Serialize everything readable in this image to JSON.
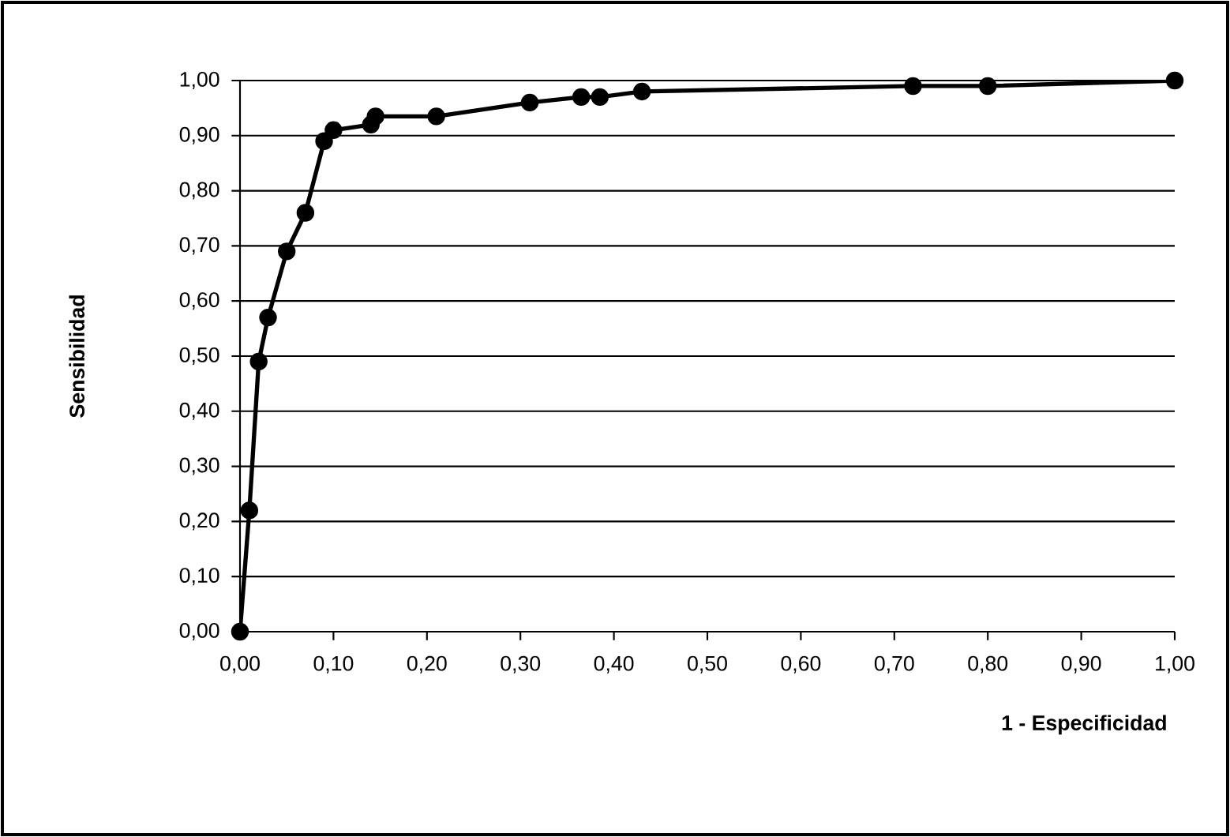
{
  "chart_data": {
    "type": "line",
    "xlabel": "**1 - Especificidad**",
    "ylabel": "**Sensibilidad**",
    "x": [
      0,
      0.01,
      0.02,
      0.03,
      0.05,
      0.07,
      0.09,
      0.1,
      0.14,
      0.145,
      0.21,
      0.31,
      0.365,
      0.385,
      0.43,
      0.72,
      0.8,
      1.0
    ],
    "series": [
      {
        "color": "#000000",
        "values": [
          0,
          0.22,
          0.49,
          0.57,
          0.69,
          0.76,
          0.89,
          0.91,
          0.92,
          0.935,
          0.935,
          0.96,
          0.97,
          0.97,
          0.98,
          0.99,
          0.99,
          1.0
        ]
      }
    ],
    "xlim": [
      0,
      1
    ],
    "ylim": [
      0,
      1
    ],
    "xticks": [
      {
        "value": 0,
        "label": "0,00"
      },
      {
        "value": 0.1,
        "label": "0,10"
      },
      {
        "value": 0.2,
        "label": "0,20"
      },
      {
        "value": 0.3,
        "label": "0,30"
      },
      {
        "value": 0.4,
        "label": "0,40"
      },
      {
        "value": 0.5,
        "label": "0,50"
      },
      {
        "value": 0.6,
        "label": "0,60"
      },
      {
        "value": 0.7,
        "label": "0,70"
      },
      {
        "value": 0.8,
        "label": "0,80"
      },
      {
        "value": 0.9,
        "label": "0,90"
      },
      {
        "value": 1,
        "label": "1,00"
      }
    ],
    "yticks": [
      {
        "value": 0,
        "label": "0,00"
      },
      {
        "value": 0.1,
        "label": "0,10"
      },
      {
        "value": 0.2,
        "label": "0,20"
      },
      {
        "value": 0.3,
        "label": "0,30"
      },
      {
        "value": 0.4,
        "label": "0,40"
      },
      {
        "value": 0.5,
        "label": "0,50"
      },
      {
        "value": 0.6,
        "label": "0,60"
      },
      {
        "value": 0.7,
        "label": "0,70"
      },
      {
        "value": 0.8,
        "label": "0,80"
      },
      {
        "value": 0.9,
        "label": "0,90"
      },
      {
        "value": 1,
        "label": "1,00"
      }
    ],
    "grid": "y",
    "marker": "circle",
    "line_style": "solid"
  }
}
